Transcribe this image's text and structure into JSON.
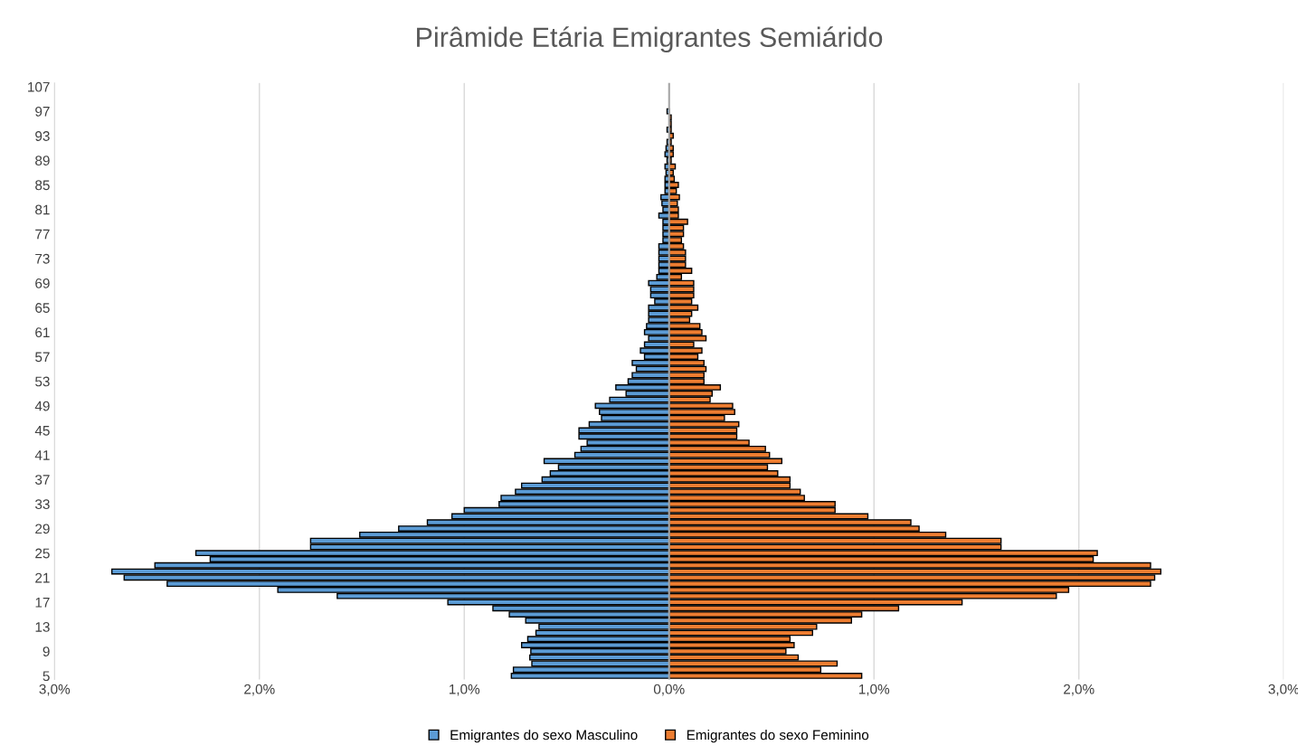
{
  "chart_data": {
    "type": "bar",
    "orientation": "horizontal",
    "stacked": true,
    "title": "Pirâmide Etária Emigrantes Semiárido",
    "categories": [
      "107",
      null,
      null,
      null,
      "97",
      null,
      null,
      null,
      "93",
      null,
      null,
      null,
      "89",
      null,
      null,
      null,
      "85",
      null,
      null,
      null,
      "81",
      null,
      null,
      null,
      "77",
      null,
      null,
      null,
      "73",
      null,
      null,
      null,
      "69",
      null,
      null,
      null,
      "65",
      null,
      null,
      null,
      "61",
      null,
      null,
      null,
      "57",
      null,
      null,
      null,
      "53",
      null,
      null,
      null,
      "49",
      null,
      null,
      null,
      "45",
      null,
      null,
      null,
      "41",
      null,
      null,
      null,
      "37",
      null,
      null,
      null,
      "33",
      null,
      null,
      null,
      "29",
      null,
      null,
      null,
      "25",
      null,
      null,
      null,
      "21",
      null,
      null,
      null,
      "17",
      null,
      null,
      null,
      "13",
      null,
      null,
      null,
      "9",
      null,
      null,
      null,
      "5"
    ],
    "series": [
      {
        "name": "Emigrantes do sexo Masculino",
        "color": "#5b9bd5",
        "values": [
          null,
          null,
          null,
          null,
          -0.01,
          null,
          null,
          -0.01,
          null,
          -0.01,
          -0.015,
          -0.02,
          -0.01,
          -0.02,
          -0.015,
          -0.02,
          -0.02,
          -0.02,
          -0.04,
          -0.035,
          -0.03,
          -0.05,
          -0.03,
          -0.03,
          -0.03,
          -0.03,
          -0.05,
          -0.05,
          -0.05,
          -0.05,
          -0.05,
          -0.06,
          -0.1,
          -0.09,
          -0.09,
          -0.07,
          -0.1,
          -0.1,
          -0.1,
          -0.11,
          -0.12,
          -0.1,
          -0.12,
          -0.14,
          -0.12,
          -0.18,
          -0.16,
          -0.18,
          -0.2,
          -0.26,
          -0.21,
          -0.29,
          -0.36,
          -0.34,
          -0.33,
          -0.39,
          -0.44,
          -0.44,
          -0.4,
          -0.43,
          -0.46,
          -0.61,
          -0.54,
          -0.58,
          -0.62,
          -0.72,
          -0.75,
          -0.82,
          -0.83,
          -1.0,
          -1.06,
          -1.18,
          -1.32,
          -1.51,
          -1.75,
          -1.75,
          -2.31,
          -2.24,
          -2.51,
          -2.72,
          -2.66,
          -2.45,
          -1.91,
          -1.62,
          -1.08,
          -0.86,
          -0.78,
          -0.7,
          -0.635,
          -0.65,
          -0.69,
          -0.72,
          -0.675,
          -0.68,
          -0.67,
          -0.76,
          -0.77
        ]
      },
      {
        "name": "Emigrantes do sexo Feminino",
        "color": "#ed7d31",
        "values": [
          null,
          null,
          null,
          null,
          null,
          0.01,
          0.01,
          0.01,
          0.02,
          0.01,
          0.02,
          0.02,
          0.01,
          0.03,
          0.02,
          0.025,
          0.045,
          0.035,
          0.05,
          0.04,
          0.045,
          0.045,
          0.09,
          0.07,
          0.07,
          0.06,
          0.07,
          0.08,
          0.08,
          0.08,
          0.11,
          0.06,
          0.12,
          0.12,
          0.12,
          0.11,
          0.14,
          0.11,
          0.1,
          0.15,
          0.16,
          0.18,
          0.12,
          0.16,
          0.14,
          0.17,
          0.18,
          0.17,
          0.17,
          0.25,
          0.21,
          0.2,
          0.31,
          0.32,
          0.27,
          0.34,
          0.33,
          0.33,
          0.39,
          0.47,
          0.49,
          0.55,
          0.48,
          0.53,
          0.59,
          0.59,
          0.64,
          0.66,
          0.81,
          0.81,
          0.97,
          1.18,
          1.22,
          1.35,
          1.62,
          1.62,
          2.09,
          2.07,
          2.35,
          2.4,
          2.37,
          2.35,
          1.95,
          1.89,
          1.43,
          1.12,
          0.94,
          0.89,
          0.72,
          0.7,
          0.59,
          0.61,
          0.57,
          0.63,
          0.82,
          0.74,
          0.94
        ]
      }
    ],
    "xlim": [
      -3,
      3
    ],
    "xticks": [
      {
        "value": -3,
        "label": "3,0%"
      },
      {
        "value": -2,
        "label": "2,0%"
      },
      {
        "value": -1,
        "label": "1,0%"
      },
      {
        "value": 0,
        "label": "0,0%"
      },
      {
        "value": 1,
        "label": "1,0%"
      },
      {
        "value": 2,
        "label": "2,0%"
      },
      {
        "value": 3,
        "label": "3,0%"
      }
    ],
    "grid": "x",
    "legend": "bottom"
  }
}
